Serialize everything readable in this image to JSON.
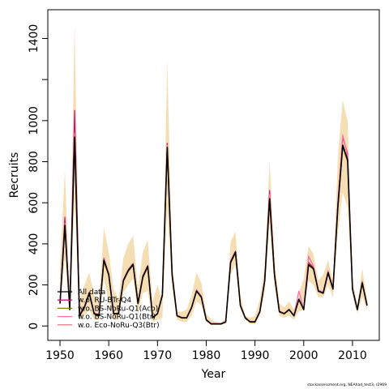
{
  "chart_data": {
    "type": "line",
    "title": "",
    "xlabel": "Year",
    "ylabel": "Recruits",
    "xlim": [
      1947.5,
      2015.5
    ],
    "ylim": [
      -70,
      1540
    ],
    "xticks": [
      1950,
      1960,
      1970,
      1980,
      1990,
      2000,
      2010
    ],
    "xtick_labels": [
      "1950",
      "1960",
      "1970",
      "1980",
      "1990",
      "2000",
      "2010"
    ],
    "yticks": [
      0,
      200,
      400,
      600,
      800,
      1000,
      1200,
      1400
    ],
    "ytick_labels": [
      "0",
      "200",
      "400",
      "600",
      "800",
      "1000",
      "",
      "1400"
    ],
    "grid": false,
    "legend_position": "bottom-left",
    "x": [
      1950,
      1951,
      1952,
      1953,
      1954,
      1955,
      1956,
      1957,
      1958,
      1959,
      1960,
      1961,
      1962,
      1963,
      1964,
      1965,
      1966,
      1967,
      1968,
      1969,
      1970,
      1971,
      1972,
      1973,
      1974,
      1975,
      1976,
      1977,
      1978,
      1979,
      1980,
      1981,
      1982,
      1983,
      1984,
      1985,
      1986,
      1987,
      1988,
      1989,
      1990,
      1991,
      1992,
      1993,
      1994,
      1995,
      1996,
      1997,
      1998,
      1999,
      2000,
      2001,
      2002,
      2003,
      2004,
      2005,
      2006,
      2007,
      2008,
      2009,
      2010,
      2011,
      2012,
      2013
    ],
    "band": {
      "lower": [
        90,
        330,
        60,
        620,
        30,
        50,
        80,
        30,
        30,
        230,
        120,
        30,
        30,
        160,
        200,
        230,
        60,
        160,
        170,
        20,
        30,
        40,
        570,
        180,
        30,
        20,
        20,
        50,
        120,
        100,
        20,
        10,
        10,
        5,
        10,
        250,
        300,
        80,
        30,
        10,
        10,
        50,
        160,
        500,
        190,
        50,
        40,
        50,
        30,
        70,
        80,
        220,
        200,
        140,
        140,
        200,
        140,
        450,
        650,
        580,
        150,
        60,
        140,
        80
      ],
      "upper": [
        280,
        760,
        130,
        1470,
        120,
        200,
        260,
        150,
        120,
        480,
        360,
        180,
        130,
        330,
        400,
        440,
        180,
        360,
        420,
        120,
        200,
        120,
        1300,
        310,
        70,
        70,
        80,
        150,
        260,
        210,
        60,
        30,
        20,
        15,
        40,
        410,
        460,
        150,
        50,
        40,
        50,
        130,
        290,
        800,
        330,
        110,
        90,
        120,
        80,
        160,
        230,
        390,
        350,
        220,
        250,
        320,
        220,
        820,
        1100,
        1000,
        230,
        100,
        280,
        130
      ]
    },
    "series": [
      {
        "name": "All data",
        "color": "#000000",
        "values": [
          110,
          490,
          80,
          920,
          50,
          90,
          160,
          60,
          50,
          320,
          250,
          60,
          60,
          220,
          270,
          300,
          110,
          240,
          290,
          40,
          60,
          150,
          870,
          250,
          50,
          40,
          40,
          90,
          170,
          140,
          30,
          10,
          10,
          10,
          20,
          310,
          360,
          100,
          40,
          20,
          20,
          70,
          220,
          620,
          250,
          70,
          60,
          80,
          50,
          130,
          80,
          300,
          280,
          170,
          160,
          260,
          180,
          580,
          880,
          810,
          180,
          80,
          210,
          100
        ]
      },
      {
        "name": "w.o. RU-BTr-Q4",
        "color": "#c71585",
        "values": [
          115,
          530,
          85,
          1050,
          55,
          95,
          165,
          65,
          52,
          330,
          255,
          62,
          62,
          225,
          275,
          305,
          115,
          245,
          295,
          42,
          62,
          155,
          890,
          255,
          52,
          42,
          42,
          92,
          175,
          145,
          32,
          12,
          12,
          11,
          22,
          315,
          365,
          102,
          42,
          22,
          22,
          72,
          225,
          660,
          255,
          72,
          62,
          82,
          52,
          132,
          85,
          310,
          285,
          175,
          165,
          265,
          185,
          600,
          920,
          840,
          185,
          82,
          215,
          102
        ]
      },
      {
        "name": "w.o. BS-NoRu-Q1(Aco)",
        "color": "#808000",
        "values": [
          108,
          480,
          78,
          900,
          48,
          88,
          155,
          58,
          48,
          315,
          245,
          58,
          58,
          218,
          265,
          295,
          108,
          235,
          285,
          38,
          58,
          148,
          860,
          245,
          48,
          38,
          38,
          88,
          168,
          138,
          28,
          9,
          9,
          9,
          18,
          305,
          355,
          98,
          38,
          18,
          18,
          68,
          218,
          610,
          245,
          68,
          58,
          78,
          48,
          128,
          78,
          295,
          275,
          168,
          158,
          255,
          178,
          570,
          870,
          800,
          178,
          78,
          205,
          98
        ]
      },
      {
        "name": "w.o. BS-NoRu-Q1(Btr)",
        "color": "#ff69b4",
        "values": [
          112,
          500,
          82,
          940,
          52,
          92,
          162,
          62,
          52,
          325,
          252,
          62,
          60,
          222,
          272,
          302,
          112,
          242,
          292,
          42,
          62,
          152,
          880,
          252,
          52,
          42,
          42,
          92,
          172,
          142,
          32,
          11,
          11,
          10,
          21,
          312,
          362,
          102,
          42,
          21,
          21,
          72,
          222,
          640,
          252,
          72,
          62,
          82,
          52,
          170,
          82,
          340,
          290,
          175,
          165,
          270,
          185,
          590,
          930,
          830,
          182,
          82,
          212,
          102
        ]
      },
      {
        "name": "w.o. Eco-NoRu-Q3(Btr)",
        "color": "#f08080",
        "values": [
          110,
          495,
          80,
          930,
          50,
          90,
          160,
          60,
          50,
          320,
          250,
          60,
          60,
          220,
          270,
          300,
          110,
          240,
          290,
          40,
          60,
          150,
          875,
          250,
          50,
          40,
          40,
          90,
          170,
          140,
          30,
          10,
          10,
          10,
          20,
          310,
          360,
          100,
          40,
          20,
          20,
          70,
          220,
          630,
          250,
          70,
          60,
          80,
          50,
          130,
          80,
          305,
          280,
          170,
          160,
          260,
          180,
          585,
          885,
          815,
          180,
          80,
          220,
          100
        ]
      }
    ],
    "band_color": "#f5deb3",
    "footer": "stockassessment.org, NEAhad_test3, r2969"
  }
}
